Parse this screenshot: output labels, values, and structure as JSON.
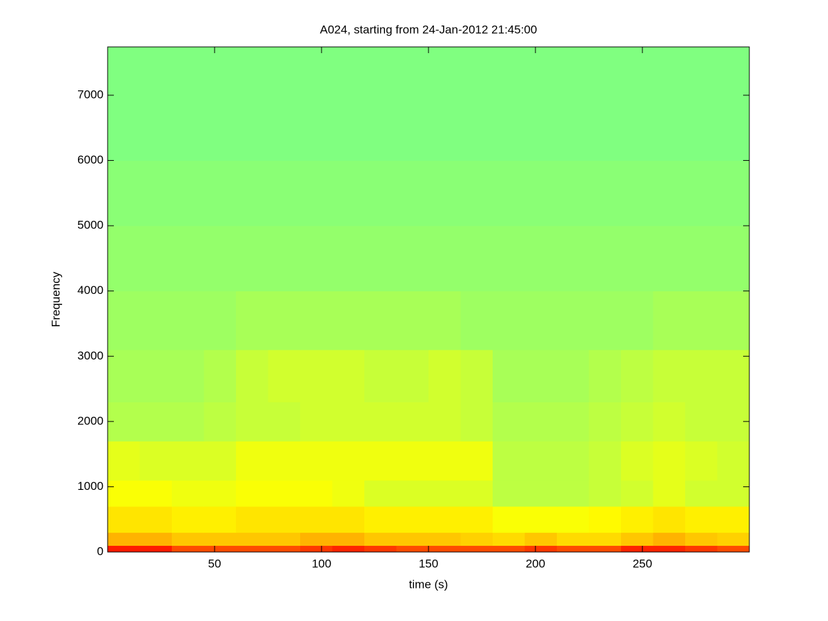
{
  "chart_data": {
    "type": "heatmap",
    "title": "A024, starting from 24-Jan-2012 21:45:00",
    "x_label": "time (s)",
    "y_label": "Frequency",
    "colormap": "jet",
    "clim": [
      0,
      1
    ],
    "x_edges": [
      0,
      15,
      30,
      45,
      60,
      75,
      90,
      105,
      120,
      135,
      150,
      165,
      180,
      195,
      210,
      225,
      240,
      255,
      270,
      285,
      300
    ],
    "y_edges": [
      0,
      100,
      300,
      700,
      1100,
      1700,
      2300,
      3100,
      4000,
      5000,
      6000,
      7740
    ],
    "z": [
      [
        0.85,
        0.85,
        0.8,
        0.8,
        0.8,
        0.8,
        0.82,
        0.84,
        0.82,
        0.8,
        0.8,
        0.8,
        0.8,
        0.82,
        0.8,
        0.8,
        0.84,
        0.84,
        0.82,
        0.8
      ],
      [
        0.7,
        0.7,
        0.68,
        0.68,
        0.68,
        0.68,
        0.7,
        0.7,
        0.68,
        0.68,
        0.68,
        0.67,
        0.66,
        0.68,
        0.66,
        0.66,
        0.68,
        0.7,
        0.68,
        0.67
      ],
      [
        0.65,
        0.65,
        0.64,
        0.64,
        0.65,
        0.65,
        0.65,
        0.65,
        0.64,
        0.64,
        0.64,
        0.64,
        0.62,
        0.62,
        0.62,
        0.63,
        0.64,
        0.65,
        0.64,
        0.64
      ],
      [
        0.62,
        0.62,
        0.61,
        0.61,
        0.62,
        0.62,
        0.62,
        0.61,
        0.59,
        0.59,
        0.59,
        0.59,
        0.56,
        0.56,
        0.56,
        0.57,
        0.58,
        0.6,
        0.58,
        0.58
      ],
      [
        0.6,
        0.59,
        0.59,
        0.59,
        0.61,
        0.61,
        0.61,
        0.61,
        0.61,
        0.61,
        0.61,
        0.61,
        0.56,
        0.56,
        0.56,
        0.57,
        0.59,
        0.6,
        0.59,
        0.58
      ],
      [
        0.55,
        0.55,
        0.55,
        0.56,
        0.57,
        0.57,
        0.58,
        0.58,
        0.58,
        0.58,
        0.58,
        0.57,
        0.55,
        0.55,
        0.55,
        0.56,
        0.57,
        0.58,
        0.57,
        0.57
      ],
      [
        0.54,
        0.54,
        0.54,
        0.55,
        0.57,
        0.58,
        0.58,
        0.58,
        0.57,
        0.57,
        0.58,
        0.57,
        0.54,
        0.54,
        0.54,
        0.55,
        0.56,
        0.57,
        0.57,
        0.57
      ],
      [
        0.53,
        0.53,
        0.53,
        0.53,
        0.54,
        0.54,
        0.54,
        0.54,
        0.54,
        0.54,
        0.54,
        0.53,
        0.53,
        0.53,
        0.53,
        0.53,
        0.53,
        0.54,
        0.54,
        0.54
      ],
      [
        0.52,
        0.52,
        0.52,
        0.52,
        0.52,
        0.52,
        0.52,
        0.52,
        0.52,
        0.52,
        0.52,
        0.52,
        0.52,
        0.52,
        0.52,
        0.52,
        0.52,
        0.52,
        0.52,
        0.52
      ],
      [
        0.51,
        0.51,
        0.51,
        0.51,
        0.51,
        0.51,
        0.51,
        0.51,
        0.51,
        0.51,
        0.51,
        0.51,
        0.51,
        0.51,
        0.51,
        0.51,
        0.51,
        0.51,
        0.51,
        0.51
      ],
      [
        0.5,
        0.5,
        0.5,
        0.5,
        0.5,
        0.5,
        0.5,
        0.5,
        0.5,
        0.5,
        0.5,
        0.5,
        0.5,
        0.5,
        0.5,
        0.5,
        0.5,
        0.5,
        0.5,
        0.5
      ]
    ],
    "xlim": [
      0,
      300
    ],
    "ylim": [
      0,
      7740
    ],
    "xticks": [
      50,
      100,
      150,
      200,
      250
    ],
    "yticks": [
      0,
      1000,
      2000,
      3000,
      4000,
      5000,
      6000,
      7000
    ]
  }
}
